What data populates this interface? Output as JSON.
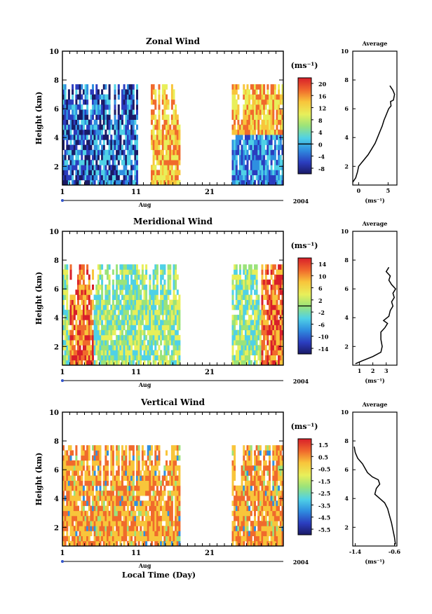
{
  "chart_data": [
    {
      "type": "heatmap",
      "title": "Zonal Wind",
      "ylabel": "Height (km)",
      "x_ticks": [
        "1",
        "11",
        "21"
      ],
      "x_month": "Aug",
      "x_year": "2004",
      "ylim": [
        0.7,
        10
      ],
      "y_ticks": [
        "2",
        "4",
        "6",
        "8",
        "10"
      ],
      "colorbar": {
        "unit": "(ms⁻¹)",
        "ticks": [
          "20",
          "16",
          "12",
          "8",
          "4",
          "0",
          "-4",
          "-8"
        ],
        "zero_line": "0"
      },
      "data_gaps": [
        [
          17,
          24
        ]
      ],
      "data_top_km": 7.5,
      "profile": {
        "title": "Average",
        "xlabel": "(ms⁻¹)",
        "x_ticks": [
          "0",
          "5"
        ],
        "xlim": [
          -1,
          6.5
        ],
        "y_ticks": [
          "2",
          "4",
          "6",
          "8",
          "10"
        ],
        "points": [
          [
            -1.0,
            0.9
          ],
          [
            -0.5,
            1.2
          ],
          [
            -0.2,
            1.6
          ],
          [
            0.0,
            2.0
          ],
          [
            0.8,
            2.4
          ],
          [
            1.6,
            2.8
          ],
          [
            2.2,
            3.2
          ],
          [
            2.8,
            3.6
          ],
          [
            3.2,
            4.0
          ],
          [
            3.6,
            4.4
          ],
          [
            4.0,
            4.8
          ],
          [
            4.3,
            5.2
          ],
          [
            4.7,
            5.6
          ],
          [
            5.1,
            6.0
          ],
          [
            5.5,
            6.2
          ],
          [
            5.4,
            6.5
          ],
          [
            5.9,
            6.6
          ],
          [
            6.1,
            7.0
          ],
          [
            5.8,
            7.3
          ],
          [
            5.3,
            7.6
          ]
        ]
      }
    },
    {
      "type": "heatmap",
      "title": "Meridional Wind",
      "ylabel": "Height (km)",
      "x_ticks": [
        "1",
        "11",
        "21"
      ],
      "x_month": "Aug",
      "x_year": "2004",
      "ylim": [
        0.7,
        10
      ],
      "y_ticks": [
        "2",
        "4",
        "6",
        "8",
        "10"
      ],
      "colorbar": {
        "unit": "(ms⁻¹)",
        "ticks": [
          "14",
          "10",
          "6",
          "2",
          "-2",
          "-6",
          "-10",
          "-14"
        ],
        "zero_line": "0"
      },
      "data_gaps": [
        [
          17,
          24
        ]
      ],
      "data_top_km": 7.5,
      "profile": {
        "title": "Average",
        "xlabel": "(ms⁻¹)",
        "x_ticks": [
          "1",
          "2",
          "3"
        ],
        "xlim": [
          0.5,
          3.8
        ],
        "y_ticks": [
          "2",
          "4",
          "6",
          "8",
          "10"
        ],
        "points": [
          [
            0.7,
            0.8
          ],
          [
            1.2,
            1.0
          ],
          [
            2.0,
            1.3
          ],
          [
            2.6,
            1.6
          ],
          [
            2.7,
            2.0
          ],
          [
            2.6,
            2.5
          ],
          [
            2.6,
            3.0
          ],
          [
            2.9,
            3.3
          ],
          [
            3.1,
            3.6
          ],
          [
            2.8,
            3.8
          ],
          [
            3.2,
            4.1
          ],
          [
            3.3,
            4.5
          ],
          [
            3.5,
            4.8
          ],
          [
            3.4,
            5.1
          ],
          [
            3.6,
            5.4
          ],
          [
            3.5,
            5.7
          ],
          [
            3.7,
            6.0
          ],
          [
            3.4,
            6.3
          ],
          [
            3.2,
            6.6
          ],
          [
            3.3,
            6.9
          ],
          [
            3.0,
            7.2
          ],
          [
            3.2,
            7.5
          ]
        ]
      }
    },
    {
      "type": "heatmap",
      "title": "Vertical Wind",
      "ylabel": "Height (km)",
      "xlabel": "Local Time (Day)",
      "x_ticks": [
        "1",
        "11",
        "21"
      ],
      "x_month": "Aug",
      "x_year": "2004",
      "ylim": [
        0.7,
        10
      ],
      "y_ticks": [
        "2",
        "4",
        "6",
        "8",
        "10"
      ],
      "colorbar": {
        "unit": "(ms⁻¹)",
        "ticks": [
          "1.5",
          "0.5",
          "-0.5",
          "-1.5",
          "-2.5",
          "-3.5",
          "-4.5",
          "-5.5"
        ]
      },
      "data_gaps": [
        [
          17,
          24
        ]
      ],
      "data_top_km": 7.5,
      "profile": {
        "title": "Average",
        "xlabel": "(ms⁻¹)",
        "x_ticks": [
          "-1.4",
          "-0.6"
        ],
        "xlim": [
          -1.45,
          -0.55
        ],
        "y_ticks": [
          "2",
          "4",
          "6",
          "8",
          "10"
        ],
        "points": [
          [
            -0.58,
            0.8
          ],
          [
            -0.6,
            1.3
          ],
          [
            -0.63,
            1.8
          ],
          [
            -0.66,
            2.3
          ],
          [
            -0.7,
            2.8
          ],
          [
            -0.74,
            3.3
          ],
          [
            -0.8,
            3.7
          ],
          [
            -0.9,
            4.0
          ],
          [
            -1.0,
            4.3
          ],
          [
            -0.97,
            4.7
          ],
          [
            -0.9,
            5.0
          ],
          [
            -0.93,
            5.3
          ],
          [
            -1.05,
            5.5
          ],
          [
            -1.15,
            5.8
          ],
          [
            -1.2,
            6.1
          ],
          [
            -1.25,
            6.4
          ],
          [
            -1.35,
            6.8
          ],
          [
            -1.4,
            7.2
          ],
          [
            -1.42,
            7.6
          ]
        ]
      }
    }
  ]
}
